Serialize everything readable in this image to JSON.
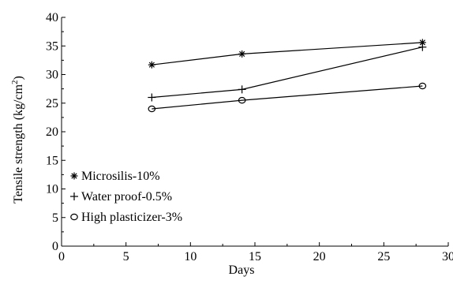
{
  "chart_data": {
    "type": "line",
    "title": "",
    "xlabel": "Days",
    "ylabel": "Tensile strength (kg/cm",
    "ylabel_sup": "2",
    "ylabel_close": ")",
    "xlim": [
      0,
      30
    ],
    "ylim": [
      0,
      40
    ],
    "xticks": [
      "0",
      "5",
      "10",
      "15",
      "20",
      "25",
      "30"
    ],
    "yticks": [
      "0",
      "5",
      "10",
      "15",
      "20",
      "25",
      "30",
      "35",
      "40"
    ],
    "grid": false,
    "legend_position": "bottom-left",
    "series": [
      {
        "name": "Microsilis-10%",
        "marker": "asterisk",
        "x": [
          7,
          14,
          28
        ],
        "y": [
          31.7,
          33.6,
          35.6
        ]
      },
      {
        "name": "Water proof-0.5%",
        "marker": "plus",
        "x": [
          7,
          14,
          28
        ],
        "y": [
          26.0,
          27.4,
          34.8
        ]
      },
      {
        "name": "High plasticizer-3%",
        "marker": "circle",
        "x": [
          7,
          14,
          28
        ],
        "y": [
          24.0,
          25.5,
          28.0
        ]
      }
    ]
  }
}
